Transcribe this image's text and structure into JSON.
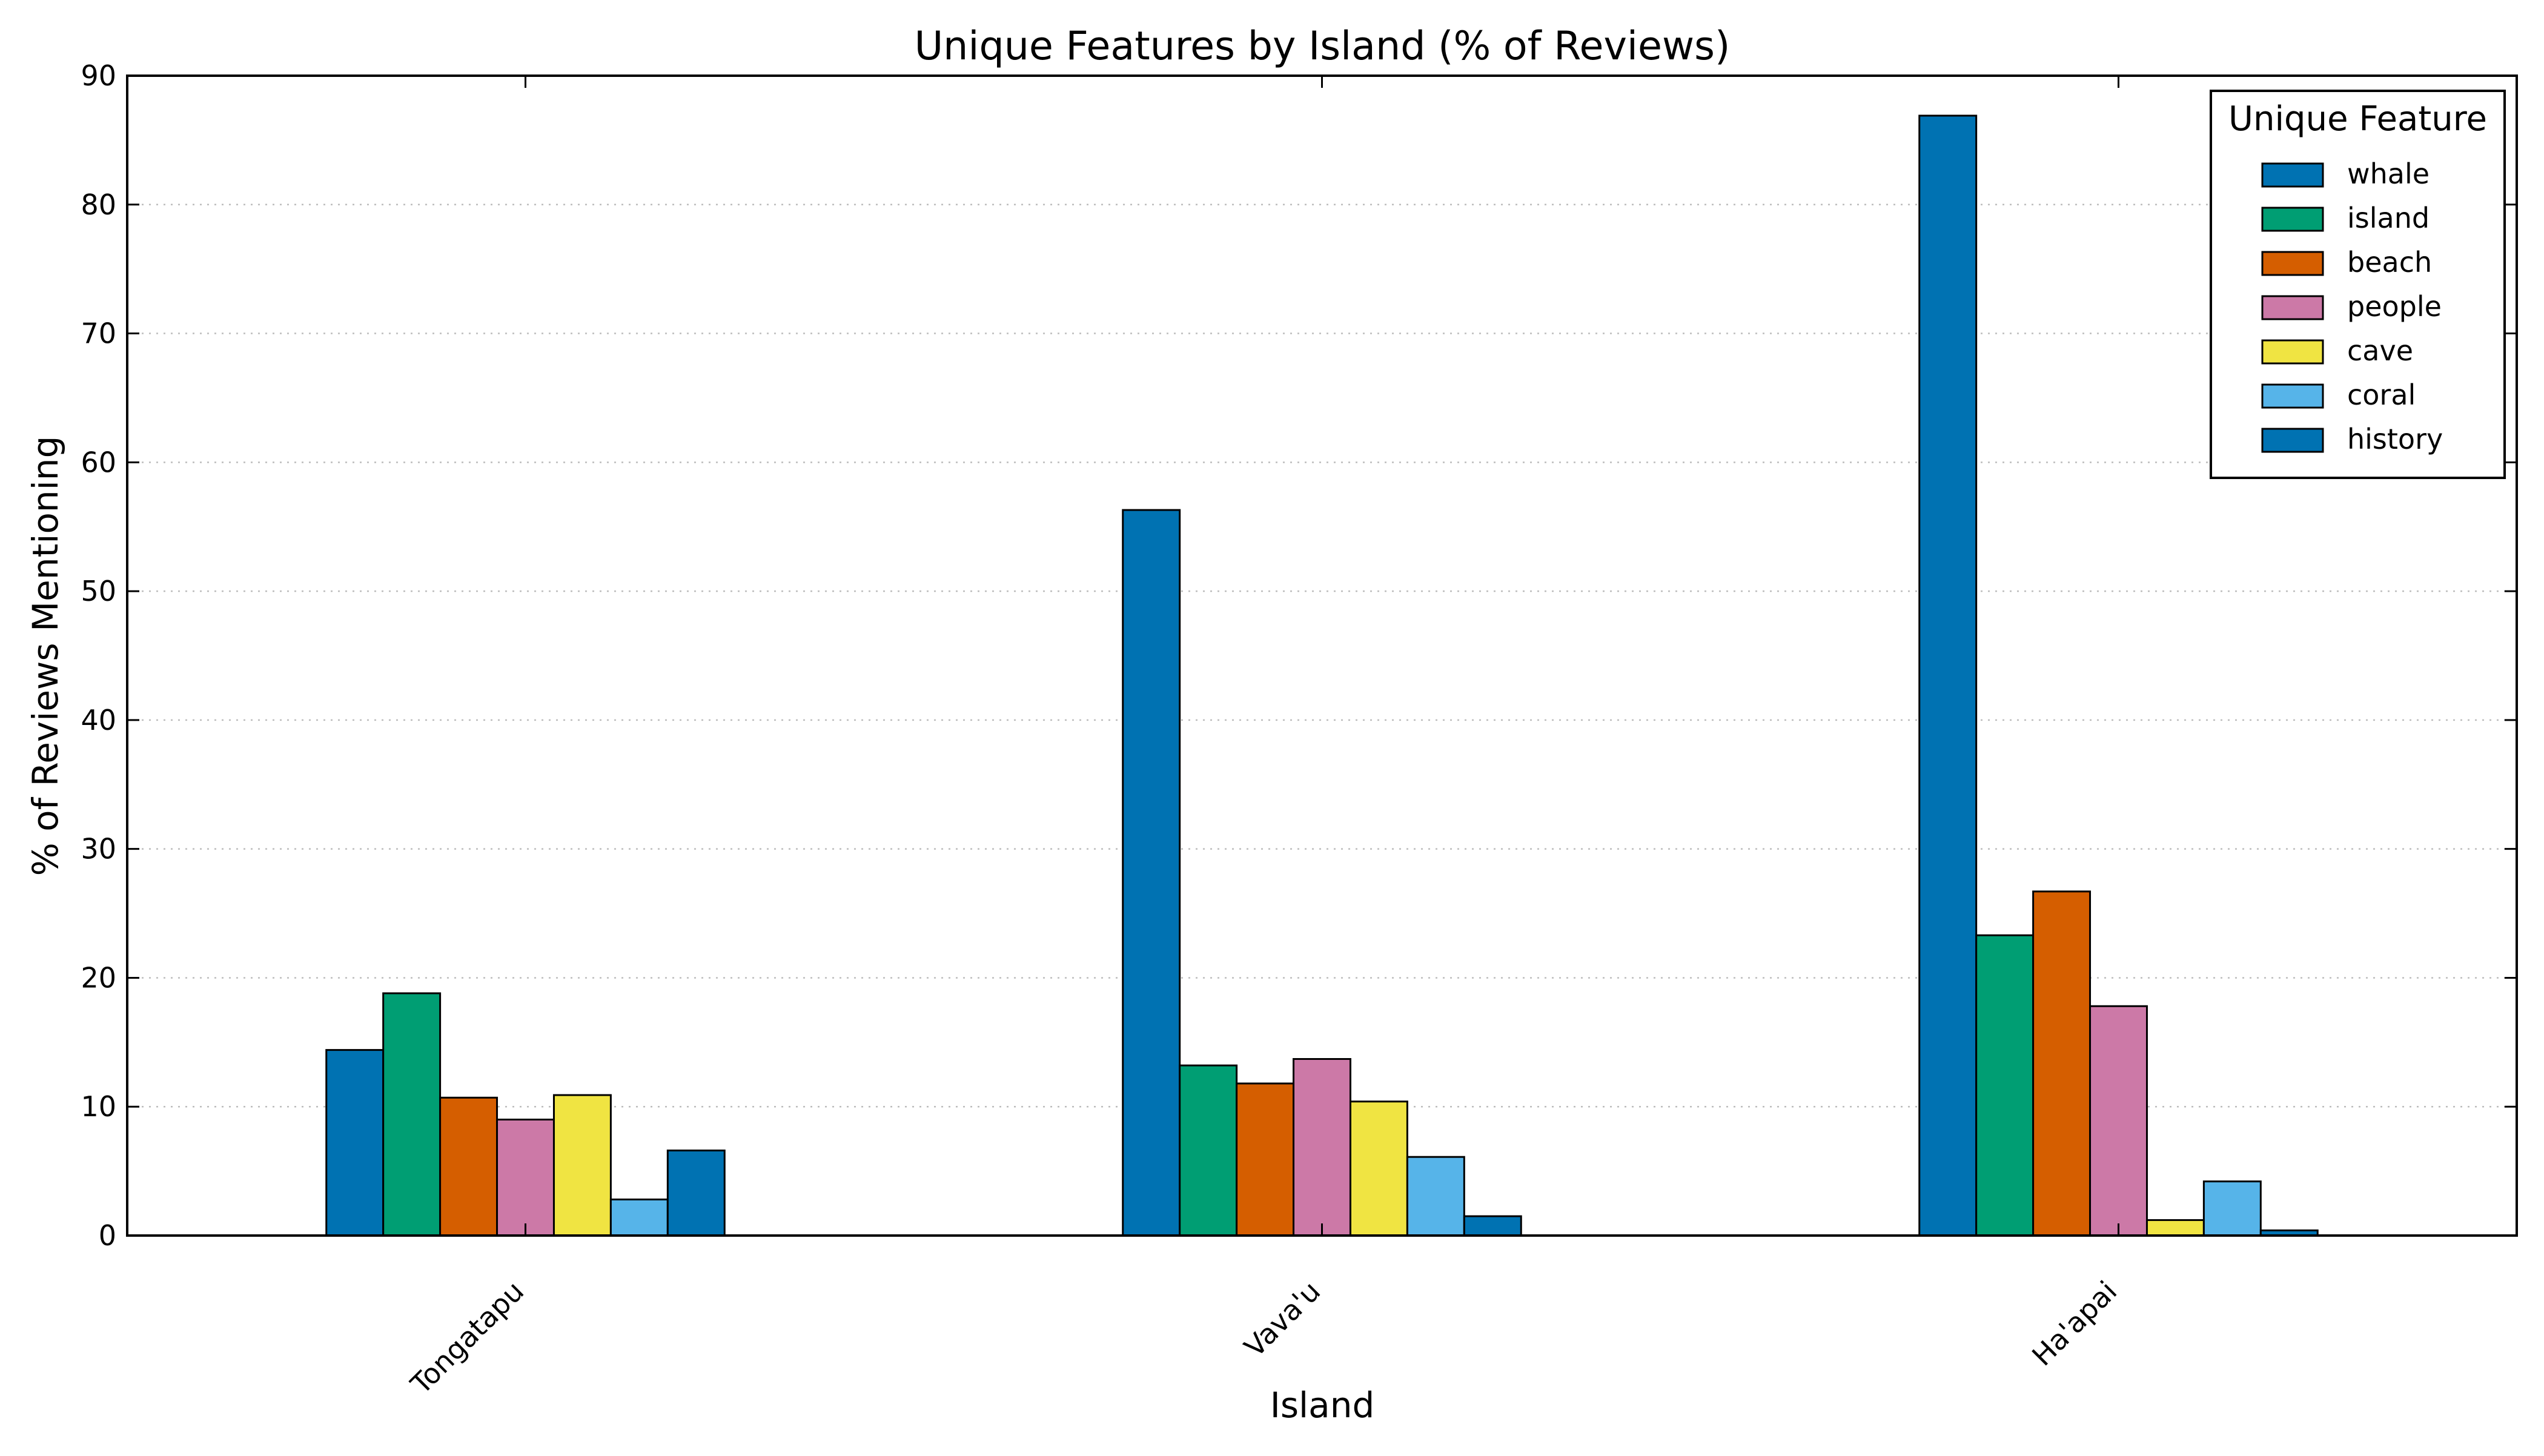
{
  "chart_data": {
    "type": "bar",
    "title": "Unique Features by Island (% of Reviews)",
    "xlabel": "Island",
    "ylabel": "% of Reviews Mentioning",
    "categories": [
      "Tongatapu",
      "Vava'u",
      "Ha'apai"
    ],
    "ylim": [
      0,
      90
    ],
    "yticks": [
      0,
      10,
      20,
      30,
      40,
      50,
      60,
      70,
      80,
      90
    ],
    "grid": "horizontal dotted",
    "legend_title": "Unique Feature",
    "legend_position": "top-right",
    "series": [
      {
        "name": "whale",
        "color": "#0072B2",
        "values": [
          14.4,
          56.3,
          86.9
        ]
      },
      {
        "name": "island",
        "color": "#009E73",
        "values": [
          18.8,
          13.2,
          23.3
        ]
      },
      {
        "name": "beach",
        "color": "#D55E00",
        "values": [
          10.7,
          11.8,
          26.7
        ]
      },
      {
        "name": "people",
        "color": "#CC79A7",
        "values": [
          9.0,
          13.7,
          17.8
        ]
      },
      {
        "name": "cave",
        "color": "#F0E442",
        "values": [
          10.9,
          10.4,
          1.2
        ]
      },
      {
        "name": "coral",
        "color": "#56B4E9",
        "values": [
          2.8,
          6.1,
          4.2
        ]
      },
      {
        "name": "history",
        "color": "#0072B2",
        "values": [
          6.6,
          1.5,
          0.4
        ]
      }
    ]
  }
}
